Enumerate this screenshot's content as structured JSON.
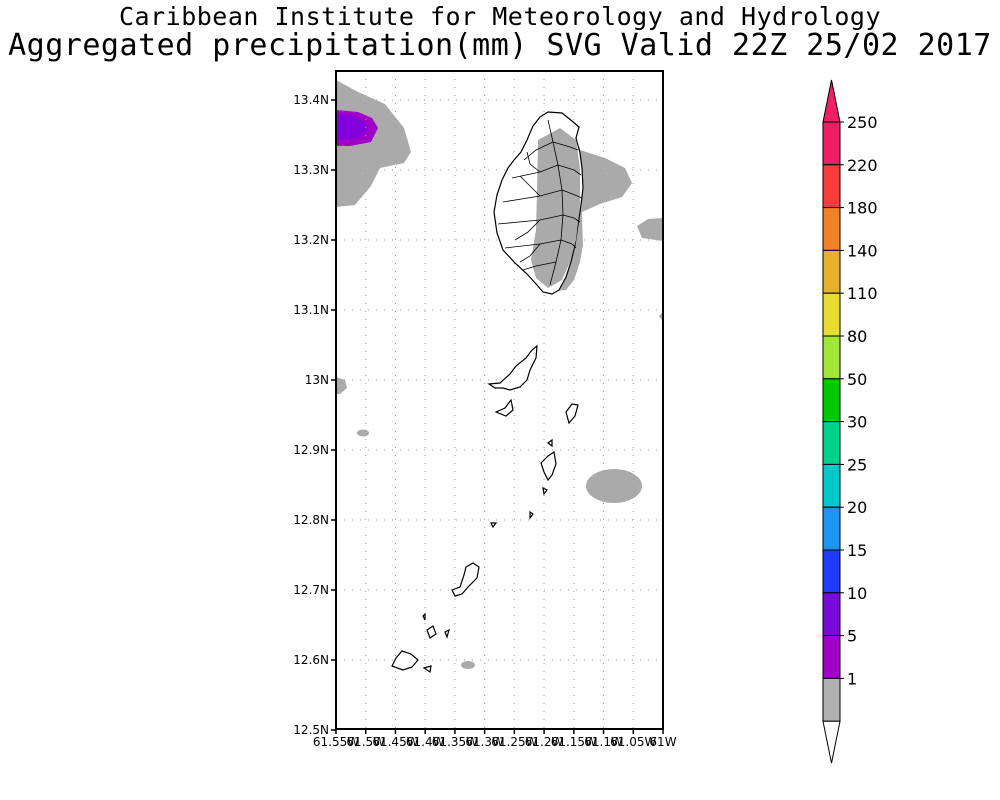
{
  "title_line1": "Caribbean Institute for Meteorology and Hydrology",
  "title_line2": "Aggregated precipitation(mm) SVG Valid 22Z 25/02 2017",
  "lat_labels": [
    "13.4N",
    "13.3N",
    "13.2N",
    "13.1N",
    "13N",
    "12.9N",
    "12.8N",
    "12.7N",
    "12.6N",
    "12.5N"
  ],
  "lon_labels": [
    "61.55W",
    "61.5W",
    "61.45W",
    "61.4W",
    "61.35W",
    "61.3W",
    "61.25W",
    "61.2W",
    "61.15W",
    "61.1W",
    "61.05W",
    "61W"
  ],
  "colorbar": {
    "labels": [
      "250",
      "220",
      "180",
      "140",
      "110",
      "80",
      "50",
      "30",
      "25",
      "20",
      "15",
      "10",
      "5",
      "1"
    ],
    "colors": [
      "#f01e64",
      "#fa3c3c",
      "#f08228",
      "#e6af2d",
      "#e6dc32",
      "#a0e632",
      "#00c800",
      "#00d28c",
      "#00c8c8",
      "#1e96f0",
      "#1e3cff",
      "#780adc",
      "#a000c8",
      "#b0b0b0"
    ]
  },
  "colors": {
    "precip_1_5": "#aaaaaa",
    "precip_10_15": "#8200dc",
    "precip_5_10": "#a000c8",
    "grid": "#999999",
    "coastline": "#000000"
  }
}
